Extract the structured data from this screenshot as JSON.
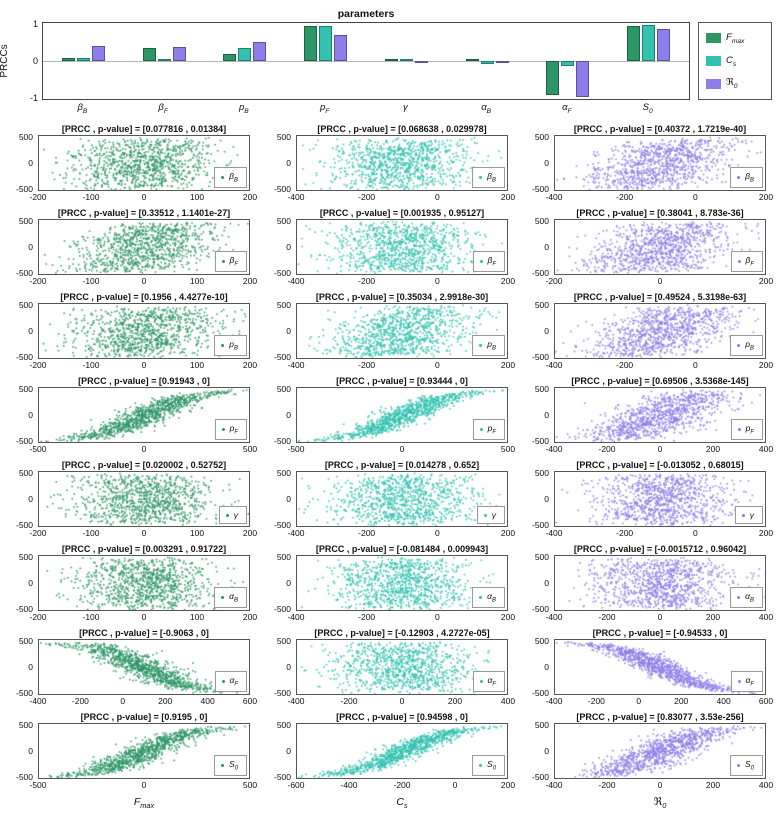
{
  "chart_data": [
    {
      "type": "bar",
      "title": "parameters",
      "ylabel": "PRCCs",
      "ylim": [
        -1,
        1
      ],
      "yticks": [
        "1",
        "0",
        "-1"
      ],
      "grid": false,
      "legend_position": "right-outside",
      "categories": [
        "β_B",
        "β_F",
        "p_B",
        "p_F",
        "γ",
        "α_B",
        "α_F",
        "S_0"
      ],
      "series": [
        {
          "name": "F_max",
          "color": "#2d9667",
          "values": [
            0.077816,
            0.33512,
            0.1956,
            0.91943,
            0.020002,
            0.003291,
            -0.9063,
            0.9195
          ]
        },
        {
          "name": "C_s",
          "color": "#33c2b0",
          "values": [
            0.068638,
            0.001935,
            0.35034,
            0.93444,
            0.014278,
            -0.081484,
            -0.12903,
            0.94598
          ]
        },
        {
          "name": "ℜ_0",
          "color": "#8d7ee9",
          "values": [
            0.40372,
            0.38041,
            0.49524,
            0.69506,
            -0.013052,
            -0.0015712,
            -0.94533,
            0.83077
          ]
        }
      ]
    },
    {
      "type": "scatter",
      "ylim": [
        -500,
        500
      ],
      "yticks": [
        "500",
        "0",
        "-500"
      ],
      "columns": [
        {
          "xlabel": "F_max",
          "color": "#2d9667"
        },
        {
          "xlabel": "C_s",
          "color": "#33c2b0"
        },
        {
          "xlabel": "ℜ_0",
          "color": "#8d7ee9"
        }
      ],
      "rows": [
        {
          "param": "β_B",
          "cells": [
            {
              "title": "[PRCC , p-value] = [0.077816 , 0.01384]",
              "prcc": 0.077816,
              "xlim": [
                -200,
                200
              ],
              "xticks": [
                -200,
                -100,
                0,
                100,
                200
              ]
            },
            {
              "title": "[PRCC , p-value] = [0.068638 , 0.029978]",
              "prcc": 0.068638,
              "xlim": [
                -400,
                200
              ],
              "xticks": [
                -400,
                -200,
                0,
                200
              ]
            },
            {
              "title": "[PRCC , p-value] = [0.40372 , 1.7219e-40]",
              "prcc": 0.40372,
              "xlim": [
                -400,
                200
              ],
              "xticks": [
                -400,
                -200,
                0,
                200
              ]
            }
          ]
        },
        {
          "param": "β_F",
          "cells": [
            {
              "title": "[PRCC , p-value] = [0.33512 , 1.1401e-27]",
              "prcc": 0.33512,
              "xlim": [
                -200,
                200
              ],
              "xticks": [
                -200,
                -100,
                0,
                100,
                200
              ]
            },
            {
              "title": "[PRCC , p-value] = [0.001935 , 0.95127]",
              "prcc": 0.001935,
              "xlim": [
                -400,
                200
              ],
              "xticks": [
                -400,
                -200,
                0,
                200
              ]
            },
            {
              "title": "[PRCC , p-value] = [0.38041 , 8.783e-36]",
              "prcc": 0.38041,
              "xlim": [
                -200,
                200
              ],
              "xticks": [
                -200,
                0,
                200
              ]
            }
          ]
        },
        {
          "param": "p_B",
          "cells": [
            {
              "title": "[PRCC , p-value] = [0.1956 , 4.4277e-10]",
              "prcc": 0.1956,
              "xlim": [
                -200,
                200
              ],
              "xticks": [
                -200,
                -100,
                0,
                100,
                200
              ]
            },
            {
              "title": "[PRCC , p-value] = [0.35034 , 2.9918e-30]",
              "prcc": 0.35034,
              "xlim": [
                -400,
                200
              ],
              "xticks": [
                -400,
                -200,
                0,
                200
              ]
            },
            {
              "title": "[PRCC , p-value] = [0.49524 , 5.3198e-63]",
              "prcc": 0.49524,
              "xlim": [
                -400,
                200
              ],
              "xticks": [
                -400,
                -200,
                0,
                200
              ]
            }
          ]
        },
        {
          "param": "p_F",
          "cells": [
            {
              "title": "[PRCC , p-value] = [0.91943 , 0]",
              "prcc": 0.91943,
              "xlim": [
                -500,
                500
              ],
              "xticks": [
                -500,
                0,
                500
              ]
            },
            {
              "title": "[PRCC , p-value] = [0.93444 , 0]",
              "prcc": 0.93444,
              "xlim": [
                -500,
                500
              ],
              "xticks": [
                -500,
                0,
                500
              ]
            },
            {
              "title": "[PRCC , p-value] = [0.69506 , 3.5368e-145]",
              "prcc": 0.69506,
              "xlim": [
                -400,
                400
              ],
              "xticks": [
                -400,
                -200,
                0,
                200,
                400
              ]
            }
          ]
        },
        {
          "param": "γ",
          "cells": [
            {
              "title": "[PRCC , p-value] = [0.020002 , 0.52752]",
              "prcc": 0.020002,
              "xlim": [
                -200,
                200
              ],
              "xticks": [
                -200,
                -100,
                0,
                100,
                200
              ]
            },
            {
              "title": "[PRCC , p-value] = [0.014278 , 0.652]",
              "prcc": 0.014278,
              "xlim": [
                -400,
                200
              ],
              "xticks": [
                -400,
                -200,
                0,
                200
              ]
            },
            {
              "title": "[PRCC , p-value] = [-0.013052 , 0.68015]",
              "prcc": -0.013052,
              "xlim": [
                -400,
                200
              ],
              "xticks": [
                -400,
                -200,
                0,
                200
              ]
            }
          ]
        },
        {
          "param": "α_B",
          "cells": [
            {
              "title": "[PRCC , p-value] = [0.003291 , 0.91722]",
              "prcc": 0.003291,
              "xlim": [
                -200,
                200
              ],
              "xticks": [
                -200,
                -100,
                0,
                100,
                200
              ]
            },
            {
              "title": "[PRCC , p-value] = [-0.081484 , 0.009943]",
              "prcc": -0.081484,
              "xlim": [
                -400,
                200
              ],
              "xticks": [
                -400,
                -200,
                0,
                200
              ]
            },
            {
              "title": "[PRCC , p-value] = [-0.0015712 , 0.96042]",
              "prcc": -0.0015712,
              "xlim": [
                -400,
                400
              ],
              "xticks": [
                -400,
                -200,
                0,
                200,
                400
              ]
            }
          ]
        },
        {
          "param": "α_F",
          "cells": [
            {
              "title": "[PRCC , p-value] = [-0.9063 , 0]",
              "prcc": -0.9063,
              "xlim": [
                -400,
                600
              ],
              "xticks": [
                -400,
                -200,
                0,
                200,
                400,
                600
              ]
            },
            {
              "title": "[PRCC , p-value] = [-0.12903 , 4.2727e-05]",
              "prcc": -0.12903,
              "xlim": [
                -400,
                400
              ],
              "xticks": [
                -400,
                -200,
                0,
                200,
                400
              ]
            },
            {
              "title": "[PRCC , p-value] = [-0.94533 , 0]",
              "prcc": -0.94533,
              "xlim": [
                -400,
                600
              ],
              "xticks": [
                -400,
                -200,
                0,
                200,
                400,
                600
              ]
            }
          ]
        },
        {
          "param": "S_0",
          "cells": [
            {
              "title": "[PRCC , p-value] = [0.9195 , 0]",
              "prcc": 0.9195,
              "xlim": [
                -500,
                500
              ],
              "xticks": [
                -500,
                0,
                500
              ]
            },
            {
              "title": "[PRCC , p-value] = [0.94598 , 0]",
              "prcc": 0.94598,
              "xlim": [
                -600,
                200
              ],
              "xticks": [
                -600,
                -400,
                -200,
                0,
                200
              ]
            },
            {
              "title": "[PRCC , p-value] = [0.83077 , 3.53e-256]",
              "prcc": 0.83077,
              "xlim": [
                -400,
                400
              ],
              "xticks": [
                -400,
                -200,
                0,
                200,
                400
              ]
            }
          ]
        }
      ]
    }
  ]
}
